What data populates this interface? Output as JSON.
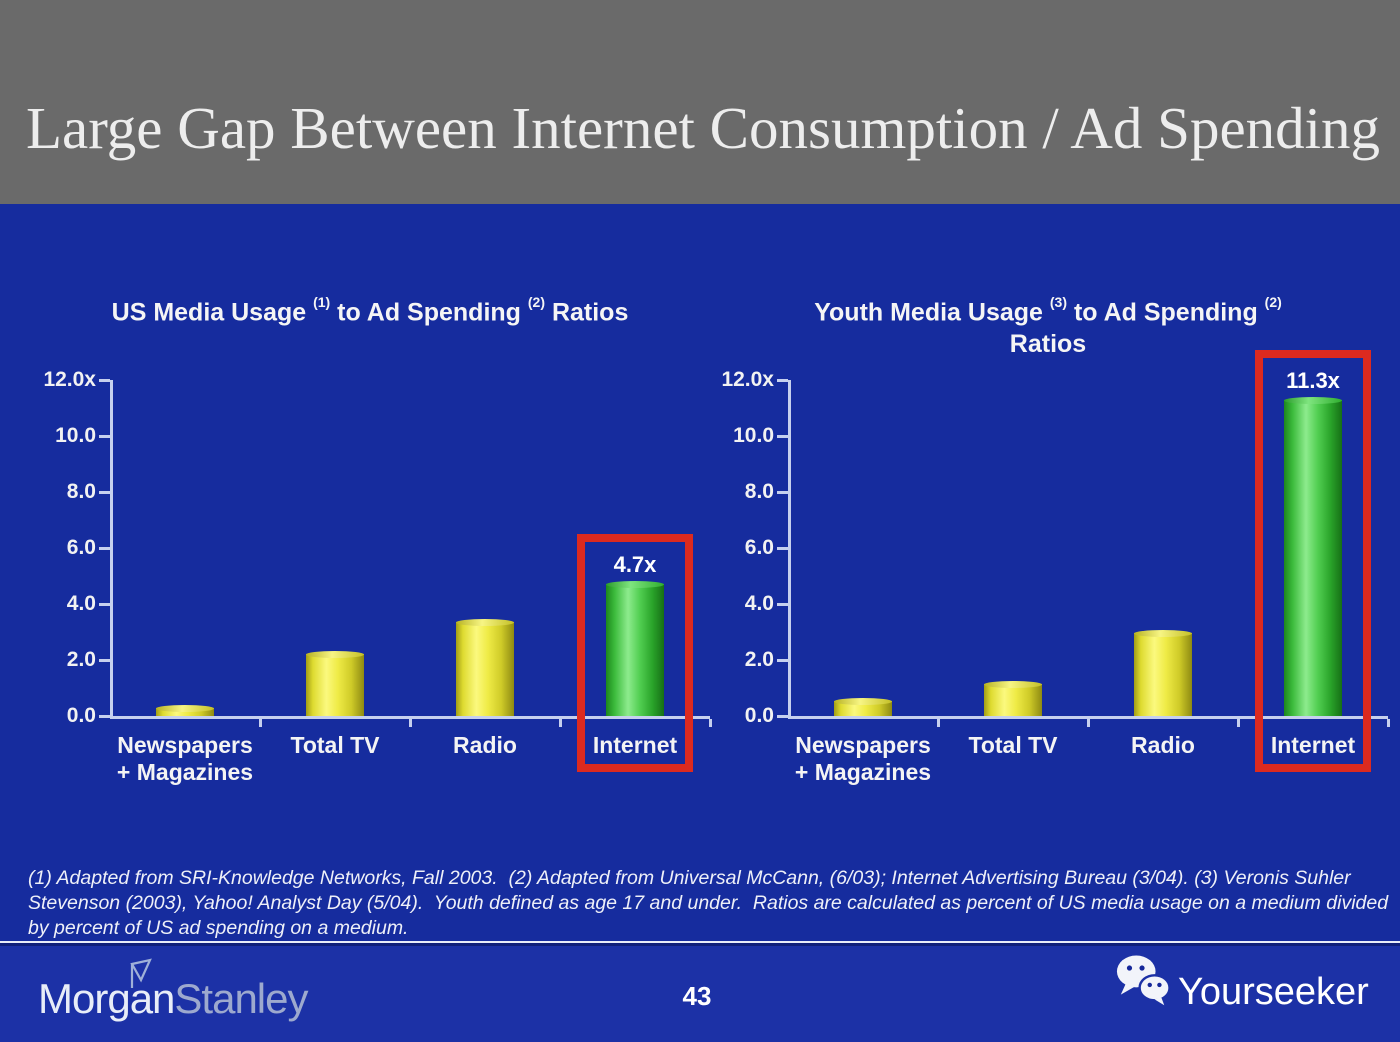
{
  "header": {
    "title": "Large Gap Between Internet Consumption / Ad Spending"
  },
  "colors": {
    "background_blue": "#162C9E",
    "footer_blue": "#1C31A6",
    "header_gray": "#6A6A6A",
    "bar_yellow": "#E8E23A",
    "bar_green": "#41C943",
    "highlight_red": "#DC2A1F",
    "axis_white": "#C6D0EE"
  },
  "chart_data": [
    {
      "type": "bar",
      "title_parts": [
        {
          "t": "US Media Usage "
        },
        {
          "t": "(1)",
          "sup": true
        },
        {
          "t": " to Ad Spending "
        },
        {
          "t": "(2)",
          "sup": true
        },
        {
          "t": " Ratios"
        }
      ],
      "categories": [
        [
          "Newspapers",
          "+ Magazines"
        ],
        [
          "Total TV"
        ],
        [
          "Radio"
        ],
        [
          "Internet"
        ]
      ],
      "values": [
        0.3,
        2.2,
        3.35,
        4.7
      ],
      "ylim": [
        0,
        12
      ],
      "yticks": [
        {
          "v": 0,
          "label": "0.0"
        },
        {
          "v": 2,
          "label": "2.0"
        },
        {
          "v": 4,
          "label": "4.0"
        },
        {
          "v": 6,
          "label": "6.0"
        },
        {
          "v": 8,
          "label": "8.0"
        },
        {
          "v": 10,
          "label": "10.0"
        },
        {
          "v": 12,
          "label": "12.0x"
        }
      ],
      "bar_color": "yellow",
      "highlight": {
        "index": 3,
        "label": "4.7x",
        "color": "green",
        "boxed": true
      },
      "grid": false,
      "legend": false
    },
    {
      "type": "bar",
      "title_parts": [
        {
          "t": "Youth Media Usage "
        },
        {
          "t": "(3)",
          "sup": true
        },
        {
          "t": " to Ad Spending "
        },
        {
          "t": "(2)",
          "sup": true
        },
        {
          "br": true
        },
        {
          "t": "Ratios"
        }
      ],
      "categories": [
        [
          "Newspapers",
          "+ Magazines"
        ],
        [
          "Total TV"
        ],
        [
          "Radio"
        ],
        [
          "Internet"
        ]
      ],
      "values": [
        0.55,
        1.15,
        2.95,
        11.3
      ],
      "ylim": [
        0,
        12
      ],
      "yticks": [
        {
          "v": 0,
          "label": "0.0"
        },
        {
          "v": 2,
          "label": "2.0"
        },
        {
          "v": 4,
          "label": "4.0"
        },
        {
          "v": 6,
          "label": "6.0"
        },
        {
          "v": 8,
          "label": "8.0"
        },
        {
          "v": 10,
          "label": "10.0"
        },
        {
          "v": 12,
          "label": "12.0x"
        }
      ],
      "bar_color": "yellow",
      "highlight": {
        "index": 3,
        "label": "11.3x",
        "color": "green",
        "boxed": true
      },
      "grid": false,
      "legend": false
    }
  ],
  "footnote": {
    "lines": [
      "(1) Adapted from SRI-Knowledge Networks, Fall 2003.  (2) Adapted from Universal McCann, (6/03); Internet Advertising Bureau (3/04). (3) Veronis Suhler",
      "Stevenson (2003), Yahoo! Analyst Day (5/04).  Youth defined as age 17 and under.  Ratios are calculated as percent of US media usage on a medium divided",
      "by percent of US ad spending on a medium."
    ]
  },
  "footer": {
    "logo_part1": "Morgan",
    "logo_part2": "Stanley",
    "page_number": "43",
    "watermark_label": "Yourseeker"
  }
}
